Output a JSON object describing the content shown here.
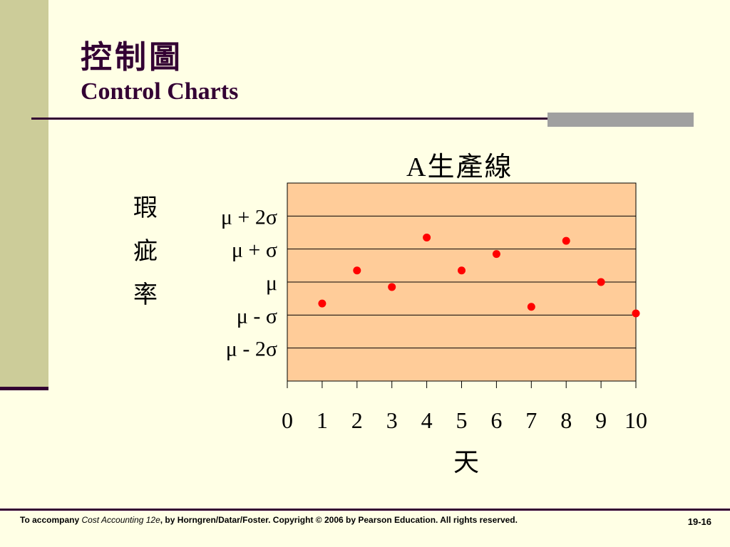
{
  "slide": {
    "title_zh": "控制圖",
    "title_en": "Control Charts"
  },
  "footer": {
    "prefix": "To accompany ",
    "book": "Cost Accounting 12e",
    "suffix": ", by Horngren/Datar/Foster. Copyright © 2006 by Pearson Education. All rights reserved.",
    "page": "19-16"
  },
  "colors": {
    "background": "#FFFFE5",
    "plot_fill": "#FFCC99",
    "point": "#FF0000",
    "accent": "#330033",
    "band": "#CCCC99"
  },
  "chart_data": {
    "type": "scatter",
    "title": "A生產線",
    "xlabel": "天",
    "ylabel": "瑕疵率",
    "x_ticks": [
      "0",
      "1",
      "2",
      "3",
      "4",
      "5",
      "6",
      "7",
      "8",
      "9",
      "10"
    ],
    "y_tick_labels": [
      {
        "value": 2,
        "label": "μ + 2σ"
      },
      {
        "value": 1,
        "label": "μ + σ"
      },
      {
        "value": 0,
        "label": "μ"
      },
      {
        "value": -1,
        "label": "μ - σ"
      },
      {
        "value": -2,
        "label": "μ - 2σ"
      }
    ],
    "xlim": [
      0,
      10
    ],
    "ylim": [
      -3,
      3
    ],
    "grid": true,
    "points": [
      {
        "x": 1,
        "y": -0.65
      },
      {
        "x": 2,
        "y": 0.35
      },
      {
        "x": 3,
        "y": -0.15
      },
      {
        "x": 4,
        "y": 1.35
      },
      {
        "x": 5,
        "y": 0.35
      },
      {
        "x": 6,
        "y": 0.85
      },
      {
        "x": 7,
        "y": -0.75
      },
      {
        "x": 8,
        "y": 1.25
      },
      {
        "x": 9,
        "y": 0.0
      },
      {
        "x": 10,
        "y": -0.95
      }
    ]
  }
}
